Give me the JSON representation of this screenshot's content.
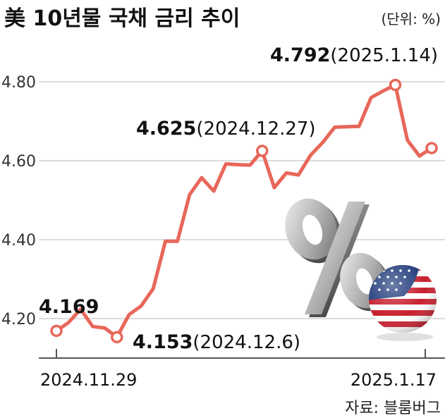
{
  "header": {
    "title": "美 10년물 국채 금리 추이",
    "unit": "(단위: %)"
  },
  "source": "자료: 블룸버그",
  "colors": {
    "line": "#e8675a",
    "grid": "#d0d0d0",
    "axis": "#555555",
    "accent": "#111111"
  },
  "decorations": {
    "percent_icon": "percent-sign-3d-icon",
    "flag_icon": "us-flag-globe-icon"
  },
  "chart_data": {
    "type": "line",
    "title": "美 10년물 국채 금리 추이",
    "xlabel": "",
    "ylabel": "",
    "unit": "%",
    "ylim": [
      4.1,
      4.9
    ],
    "yticks": [
      "4.20",
      "4.40",
      "4.60",
      "4.80"
    ],
    "ytick_values": [
      4.2,
      4.4,
      4.6,
      4.8
    ],
    "xtick_labels": [
      "2024.11.29",
      "2025.1.17"
    ],
    "grid": true,
    "series": [
      {
        "name": "",
        "values": [
          4.169,
          4.19,
          4.224,
          4.18,
          4.176,
          4.153,
          4.21,
          4.232,
          4.276,
          4.396,
          4.396,
          4.514,
          4.557,
          4.523,
          4.592,
          4.59,
          4.589,
          4.625,
          4.532,
          4.569,
          4.564,
          4.614,
          4.646,
          4.685,
          4.686,
          4.687,
          4.76,
          4.777,
          4.792,
          4.652,
          4.612,
          4.632
        ]
      }
    ],
    "annotations": [
      {
        "index": 0,
        "value": "4.169",
        "date": ""
      },
      {
        "index": 5,
        "value": "4.153",
        "date": "(2024.12.6)"
      },
      {
        "index": 17,
        "value": "4.625",
        "date": "(2024.12.27)"
      },
      {
        "index": 28,
        "value": "4.792",
        "date": "(2025.1.14)"
      }
    ],
    "highlight_indices": [
      0,
      5,
      17,
      28,
      31
    ]
  }
}
